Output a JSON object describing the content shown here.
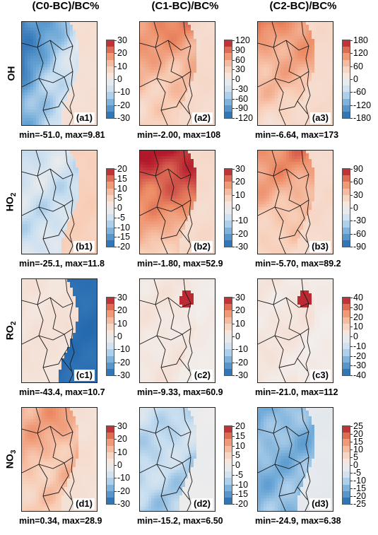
{
  "column_titles": [
    "(C0-BC)/BC%",
    "(C1-BC)/BC%",
    "(C2-BC)/BC%"
  ],
  "row_labels": [
    {
      "base": "OH",
      "sub": ""
    },
    {
      "base": "HO",
      "sub": "2"
    },
    {
      "base": "RO",
      "sub": "2"
    },
    {
      "base": "NO",
      "sub": "3"
    }
  ],
  "colors": {
    "neg_strong": "#2166ac",
    "neg_mid": "#6aa6d6",
    "neg_light": "#c6ddf0",
    "neutral": "#f2eeec",
    "pos_light": "#f8cdb6",
    "pos_mid": "#ec8a64",
    "pos_strong": "#b2182b",
    "boundary": "#1a1a1a"
  },
  "chart_data": [
    {
      "type": "heatmap",
      "tag": "(a1)",
      "species": "OH",
      "scenario": "(C0-BC)/BC%",
      "ticks": [
        30,
        20,
        10,
        0,
        -10,
        -20,
        -30
      ],
      "range": [
        -30,
        30
      ],
      "min": "-51.0",
      "max": "9.81",
      "stats": "min=-51.0, max=9.81",
      "pattern": "west-negative"
    },
    {
      "type": "heatmap",
      "tag": "(a2)",
      "species": "OH",
      "scenario": "(C1-BC)/BC%",
      "ticks": [
        120,
        90,
        60,
        30,
        0,
        -30,
        -60,
        -90,
        -120
      ],
      "range": [
        -120,
        120
      ],
      "min": "-2.00",
      "max": "108",
      "stats": "min=-2.00, max=108",
      "pattern": "positive-north"
    },
    {
      "type": "heatmap",
      "tag": "(a3)",
      "species": "OH",
      "scenario": "(C2-BC)/BC%",
      "ticks": [
        180,
        120,
        60,
        0,
        -60,
        -120,
        -180
      ],
      "range": [
        -180,
        180
      ],
      "min": "-6.64",
      "max": "173",
      "stats": "min=-6.64, max=173",
      "pattern": "positive-north"
    },
    {
      "type": "heatmap",
      "tag": "(b1)",
      "species": "HO2",
      "scenario": "(C0-BC)/BC%",
      "ticks": [
        20,
        15,
        10,
        5,
        0,
        -5,
        -10,
        -15,
        -20
      ],
      "range": [
        -20,
        20
      ],
      "min": "-25.1",
      "max": "11.8",
      "stats": "min=-25.1, max=11.8",
      "pattern": "west-light-negative"
    },
    {
      "type": "heatmap",
      "tag": "(b2)",
      "species": "HO2",
      "scenario": "(C1-BC)/BC%",
      "ticks": [
        30,
        20,
        10,
        0,
        -10,
        -20,
        -30
      ],
      "range": [
        -30,
        30
      ],
      "min": "-1.80",
      "max": "52.9",
      "stats": "min=-1.80, max=52.9",
      "pattern": "positive-north-strong"
    },
    {
      "type": "heatmap",
      "tag": "(b3)",
      "species": "HO2",
      "scenario": "(C2-BC)/BC%",
      "ticks": [
        90,
        60,
        30,
        0,
        -30,
        -60,
        -90
      ],
      "range": [
        -90,
        90
      ],
      "min": "-5.70",
      "max": "89.2",
      "stats": "min=-5.70, max=89.2",
      "pattern": "positive-north"
    },
    {
      "type": "heatmap",
      "tag": "(c1)",
      "species": "RO2",
      "scenario": "(C0-BC)/BC%",
      "ticks": [
        30,
        20,
        10,
        0,
        -10,
        -20,
        -30
      ],
      "range": [
        -30,
        30
      ],
      "min": "-43.4",
      "max": "10.7",
      "stats": "min=-43.4, max=10.7",
      "pattern": "east-negative"
    },
    {
      "type": "heatmap",
      "tag": "(c2)",
      "species": "RO2",
      "scenario": "(C1-BC)/BC%",
      "ticks": [
        30,
        20,
        10,
        0,
        -10,
        -20,
        -30
      ],
      "range": [
        -30,
        30
      ],
      "min": "-9.33",
      "max": "60.9",
      "stats": "min=-9.33, max=60.9",
      "pattern": "near-zero-hotspot"
    },
    {
      "type": "heatmap",
      "tag": "(c3)",
      "species": "RO2",
      "scenario": "(C2-BC)/BC%",
      "ticks": [
        40,
        30,
        20,
        10,
        0,
        -10,
        -20,
        -30,
        -40
      ],
      "range": [
        -40,
        40
      ],
      "min": "-21.0",
      "max": "112",
      "stats": "min=-21.0, max=112",
      "pattern": "near-zero-hotspot"
    },
    {
      "type": "heatmap",
      "tag": "(d1)",
      "species": "NO3",
      "scenario": "(C0-BC)/BC%",
      "ticks": [
        30,
        20,
        10,
        0,
        -10,
        -20,
        -30
      ],
      "range": [
        -30,
        30
      ],
      "min": "0.34",
      "max": "28.9",
      "stats": "min=0.34, max=28.9",
      "pattern": "positive-all"
    },
    {
      "type": "heatmap",
      "tag": "(d2)",
      "species": "NO3",
      "scenario": "(C1-BC)/BC%",
      "ticks": [
        20,
        15,
        10,
        5,
        0,
        -5,
        -10,
        -15,
        -20
      ],
      "range": [
        -20,
        20
      ],
      "min": "-15.2",
      "max": "6.50",
      "stats": "min=-15.2, max=6.50",
      "pattern": "negative-all"
    },
    {
      "type": "heatmap",
      "tag": "(d3)",
      "species": "NO3",
      "scenario": "(C2-BC)/BC%",
      "ticks": [
        25,
        20,
        15,
        10,
        5,
        0,
        -5,
        -10,
        -15,
        -20,
        -25
      ],
      "range": [
        -25,
        25
      ],
      "min": "-24.9",
      "max": "6.38",
      "stats": "min=-24.9, max=6.38",
      "pattern": "negative-all-strong"
    }
  ]
}
